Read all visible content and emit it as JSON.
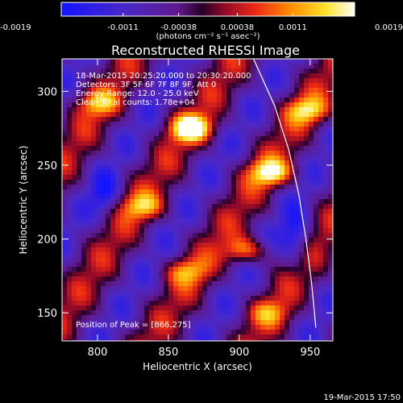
{
  "chart_data": {
    "type": "heatmap",
    "title": "Reconstructed RHESSI Image",
    "xlabel": "Heliocentric X (arcsec)",
    "ylabel": "Heliocentric Y (arcsec)",
    "xlim": [
      775,
      966
    ],
    "ylim": [
      131,
      322
    ],
    "x_ticks": [
      800,
      850,
      900,
      950
    ],
    "y_ticks": [
      150,
      200,
      250,
      300
    ],
    "colorbar": {
      "ticks": [
        "-0.0019",
        "-0.0011",
        "-0.00038",
        "0.00038",
        "0.0011",
        "0.0019"
      ],
      "range": [
        -0.0019,
        0.0019
      ],
      "unit_label": "(photons cm⁻² s⁻¹ asec⁻²)"
    },
    "annotations": {
      "time_range": "18-Mar-2015 20:25:20.000 to 20:30:20.000",
      "detectors": "Detectors: 3F 5F 6F 7F 8F 9F, Att 0",
      "energy": "Energy Range: 12.0 - 25.0 keV",
      "clean": "Clean     Total counts: 1.78e+04",
      "peak": "Position of Peak = [866,275]"
    },
    "timestamp": "19-Mar-2015 17:50",
    "limb_curve": [
      [
        910,
        322
      ],
      [
        925,
        290
      ],
      [
        935,
        260
      ],
      [
        942,
        230
      ],
      [
        947,
        200
      ],
      [
        951,
        170
      ],
      [
        954,
        140
      ]
    ],
    "bright_sources": [
      {
        "x": 866,
        "y": 275,
        "value": 0.0019
      },
      {
        "x": 922,
        "y": 245,
        "value": 0.0016
      },
      {
        "x": 948,
        "y": 287,
        "value": 0.0013
      },
      {
        "x": 832,
        "y": 222,
        "value": 0.0011
      },
      {
        "x": 905,
        "y": 192,
        "value": 0.0013
      },
      {
        "x": 862,
        "y": 178,
        "value": 0.001
      },
      {
        "x": 800,
        "y": 292,
        "value": 0.001
      },
      {
        "x": 920,
        "y": 150,
        "value": 0.0008
      }
    ]
  }
}
